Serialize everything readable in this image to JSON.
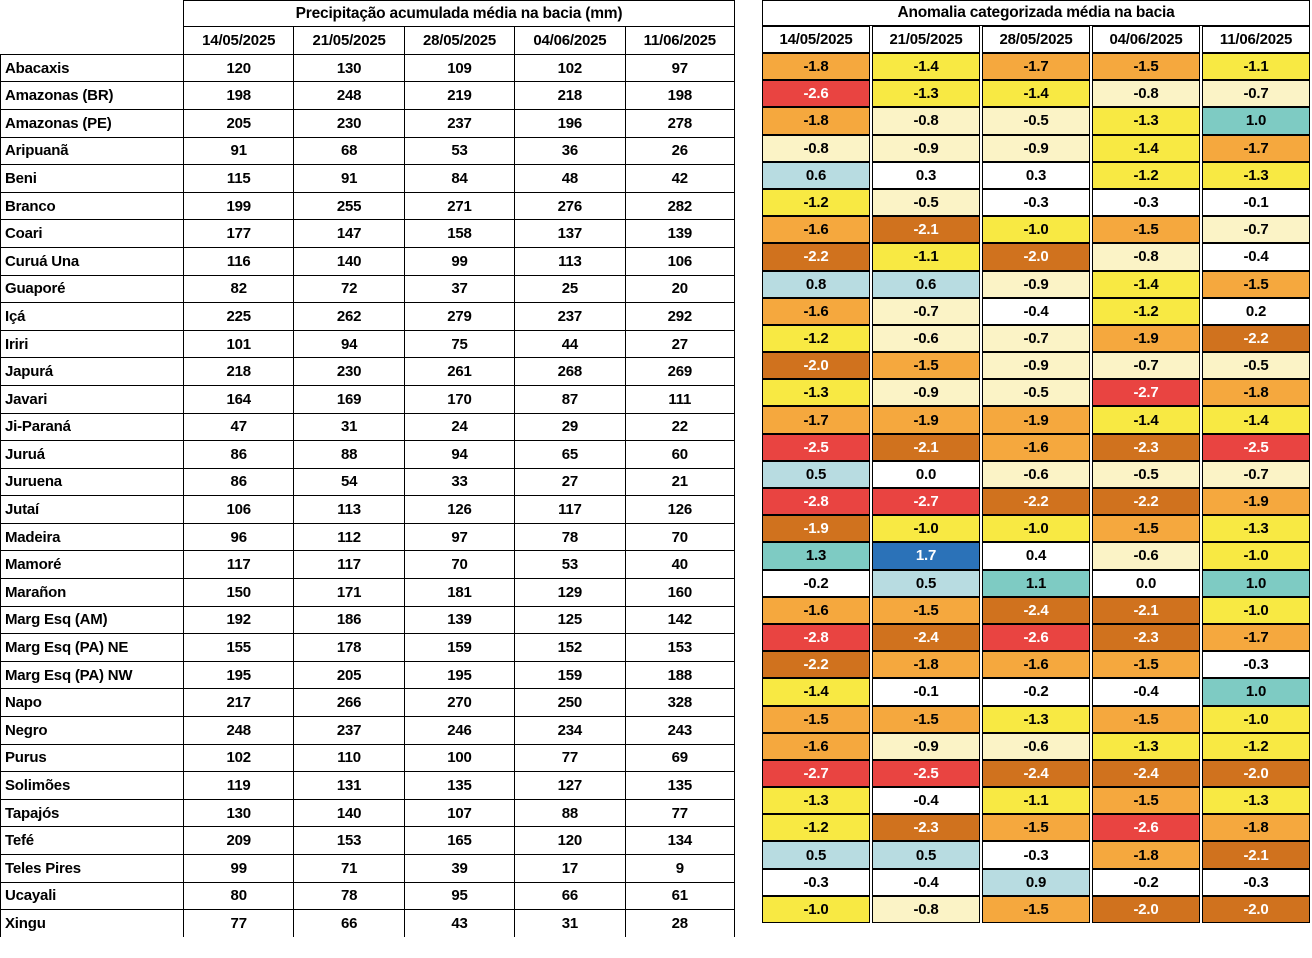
{
  "chart_data": [
    {
      "type": "table",
      "title": "Precipitação acumulada média na bacia (mm)",
      "columns": [
        "14/05/2025",
        "21/05/2025",
        "28/05/2025",
        "04/06/2025",
        "11/06/2025"
      ],
      "row_labels": [
        "Abacaxis",
        "Amazonas (BR)",
        "Amazonas (PE)",
        "Aripuanã",
        "Beni",
        "Branco",
        "Coari",
        "Curuá Una",
        "Guaporé",
        "Içá",
        "Iriri",
        "Japurá",
        "Javari",
        "Ji-Paraná",
        "Juruá",
        "Juruena",
        "Jutaí",
        "Madeira",
        "Mamoré",
        "Marañon",
        "Marg Esq (AM)",
        "Marg Esq (PA) NE",
        "Marg Esq (PA) NW",
        "Napo",
        "Negro",
        "Purus",
        "Solimões",
        "Tapajós",
        "Tefé",
        "Teles Pires",
        "Ucayali",
        "Xingu"
      ],
      "values": [
        [
          120,
          130,
          109,
          102,
          97
        ],
        [
          198,
          248,
          219,
          218,
          198
        ],
        [
          205,
          230,
          237,
          196,
          278
        ],
        [
          91,
          68,
          53,
          36,
          26
        ],
        [
          115,
          91,
          84,
          48,
          42
        ],
        [
          199,
          255,
          271,
          276,
          282
        ],
        [
          177,
          147,
          158,
          137,
          139
        ],
        [
          116,
          140,
          99,
          113,
          106
        ],
        [
          82,
          72,
          37,
          25,
          20
        ],
        [
          225,
          262,
          279,
          237,
          292
        ],
        [
          101,
          94,
          75,
          44,
          27
        ],
        [
          218,
          230,
          261,
          268,
          269
        ],
        [
          164,
          169,
          170,
          87,
          111
        ],
        [
          47,
          31,
          24,
          29,
          22
        ],
        [
          86,
          88,
          94,
          65,
          60
        ],
        [
          86,
          54,
          33,
          27,
          21
        ],
        [
          106,
          113,
          126,
          117,
          126
        ],
        [
          96,
          112,
          97,
          78,
          70
        ],
        [
          117,
          117,
          70,
          53,
          40
        ],
        [
          150,
          171,
          181,
          129,
          160
        ],
        [
          192,
          186,
          139,
          125,
          142
        ],
        [
          155,
          178,
          159,
          152,
          153
        ],
        [
          195,
          205,
          195,
          159,
          188
        ],
        [
          217,
          266,
          270,
          250,
          328
        ],
        [
          248,
          237,
          246,
          234,
          243
        ],
        [
          102,
          110,
          100,
          77,
          69
        ],
        [
          119,
          131,
          135,
          127,
          135
        ],
        [
          130,
          140,
          107,
          88,
          77
        ],
        [
          209,
          153,
          165,
          120,
          134
        ],
        [
          99,
          71,
          39,
          17,
          9
        ],
        [
          80,
          78,
          95,
          66,
          61
        ],
        [
          77,
          66,
          43,
          31,
          28
        ]
      ]
    },
    {
      "type": "heatmap",
      "title": "Anomalia categorizada média na bacia",
      "columns": [
        "14/05/2025",
        "21/05/2025",
        "28/05/2025",
        "04/06/2025",
        "11/06/2025"
      ],
      "row_labels": [
        "Abacaxis",
        "Amazonas (BR)",
        "Amazonas (PE)",
        "Aripuanã",
        "Beni",
        "Branco",
        "Coari",
        "Curuá Una",
        "Guaporé",
        "Içá",
        "Iriri",
        "Japurá",
        "Javari",
        "Ji-Paraná",
        "Juruá",
        "Juruena",
        "Jutaí",
        "Madeira",
        "Mamoré",
        "Marañon",
        "Marg Esq (AM)",
        "Marg Esq (PA) NE",
        "Marg Esq (PA) NW",
        "Napo",
        "Negro",
        "Purus",
        "Solimões",
        "Tapajós",
        "Tefé",
        "Teles Pires",
        "Ucayali",
        "Xingu"
      ],
      "values": [
        [
          "-1.8",
          "-1.4",
          "-1.7",
          "-1.5",
          "-1.1"
        ],
        [
          "-2.6",
          "-1.3",
          "-1.4",
          "-0.8",
          "-0.7"
        ],
        [
          "-1.8",
          "-0.8",
          "-0.5",
          "-1.3",
          "1.0"
        ],
        [
          "-0.8",
          "-0.9",
          "-0.9",
          "-1.4",
          "-1.7"
        ],
        [
          "0.6",
          "0.3",
          "0.3",
          "-1.2",
          "-1.3"
        ],
        [
          "-1.2",
          "-0.5",
          "-0.3",
          "-0.3",
          "-0.1"
        ],
        [
          "-1.6",
          "-2.1",
          "-1.0",
          "-1.5",
          "-0.7"
        ],
        [
          "-2.2",
          "-1.1",
          "-2.0",
          "-0.8",
          "-0.4"
        ],
        [
          "0.8",
          "0.6",
          "-0.9",
          "-1.4",
          "-1.5"
        ],
        [
          "-1.6",
          "-0.7",
          "-0.4",
          "-1.2",
          "0.2"
        ],
        [
          "-1.2",
          "-0.6",
          "-0.7",
          "-1.9",
          "-2.2"
        ],
        [
          "-2.0",
          "-1.5",
          "-0.9",
          "-0.7",
          "-0.5"
        ],
        [
          "-1.3",
          "-0.9",
          "-0.5",
          "-2.7",
          "-1.8"
        ],
        [
          "-1.7",
          "-1.9",
          "-1.9",
          "-1.4",
          "-1.4"
        ],
        [
          "-2.5",
          "-2.1",
          "-1.6",
          "-2.3",
          "-2.5"
        ],
        [
          "0.5",
          "0.0",
          "-0.6",
          "-0.5",
          "-0.7"
        ],
        [
          "-2.8",
          "-2.7",
          "-2.2",
          "-2.2",
          "-1.9"
        ],
        [
          "-1.9",
          "-1.0",
          "-1.0",
          "-1.5",
          "-1.3"
        ],
        [
          "1.3",
          "1.7",
          "0.4",
          "-0.6",
          "-1.0"
        ],
        [
          "-0.2",
          "0.5",
          "1.1",
          "0.0",
          "1.0"
        ],
        [
          "-1.6",
          "-1.5",
          "-2.4",
          "-2.1",
          "-1.0"
        ],
        [
          "-2.8",
          "-2.4",
          "-2.6",
          "-2.3",
          "-1.7"
        ],
        [
          "-2.2",
          "-1.8",
          "-1.6",
          "-1.5",
          "-0.3"
        ],
        [
          "-1.4",
          "-0.1",
          "-0.2",
          "-0.4",
          "1.0"
        ],
        [
          "-1.5",
          "-1.5",
          "-1.3",
          "-1.5",
          "-1.0"
        ],
        [
          "-1.6",
          "-0.9",
          "-0.6",
          "-1.3",
          "-1.2"
        ],
        [
          "-2.7",
          "-2.5",
          "-2.4",
          "-2.4",
          "-2.0"
        ],
        [
          "-1.3",
          "-0.4",
          "-1.1",
          "-1.5",
          "-1.3"
        ],
        [
          "-1.2",
          "-2.3",
          "-1.5",
          "-2.6",
          "-1.8"
        ],
        [
          "0.5",
          "0.5",
          "-0.3",
          "-1.8",
          "-2.1"
        ],
        [
          "-0.3",
          "-0.4",
          "0.9",
          "-0.2",
          "-0.3"
        ],
        [
          "-1.0",
          "-0.8",
          "-1.5",
          "-2.0",
          "-2.0"
        ]
      ],
      "cell_categories": [
        [
          "orange",
          "yellow",
          "orange",
          "orange",
          "yellow"
        ],
        [
          "red",
          "yellow",
          "yellow",
          "cream",
          "cream"
        ],
        [
          "orange",
          "cream",
          "cream",
          "yellow",
          "teal"
        ],
        [
          "cream",
          "cream",
          "cream",
          "yellow",
          "orange"
        ],
        [
          "light_blue",
          "white",
          "white",
          "yellow",
          "yellow"
        ],
        [
          "yellow",
          "cream",
          "white",
          "white",
          "white"
        ],
        [
          "orange",
          "dark_orange",
          "yellow",
          "orange",
          "cream"
        ],
        [
          "dark_orange",
          "yellow",
          "dark_orange",
          "cream",
          "white"
        ],
        [
          "light_blue",
          "light_blue",
          "cream",
          "yellow",
          "orange"
        ],
        [
          "orange",
          "cream",
          "white",
          "yellow",
          "white"
        ],
        [
          "yellow",
          "cream",
          "cream",
          "orange",
          "dark_orange"
        ],
        [
          "dark_orange",
          "orange",
          "cream",
          "cream",
          "cream"
        ],
        [
          "yellow",
          "cream",
          "cream",
          "red",
          "orange"
        ],
        [
          "orange",
          "orange",
          "orange",
          "yellow",
          "yellow"
        ],
        [
          "red",
          "dark_orange",
          "orange",
          "dark_orange",
          "red"
        ],
        [
          "light_blue",
          "white",
          "cream",
          "cream",
          "cream"
        ],
        [
          "red",
          "red",
          "dark_orange",
          "dark_orange",
          "orange"
        ],
        [
          "dark_orange",
          "yellow",
          "yellow",
          "orange",
          "yellow"
        ],
        [
          "teal",
          "blue",
          "white",
          "cream",
          "yellow"
        ],
        [
          "white",
          "light_blue",
          "teal",
          "white",
          "teal"
        ],
        [
          "orange",
          "orange",
          "dark_orange",
          "dark_orange",
          "yellow"
        ],
        [
          "red",
          "dark_orange",
          "red",
          "dark_orange",
          "orange"
        ],
        [
          "dark_orange",
          "orange",
          "orange",
          "orange",
          "white"
        ],
        [
          "yellow",
          "white",
          "white",
          "white",
          "teal"
        ],
        [
          "orange",
          "orange",
          "yellow",
          "orange",
          "yellow"
        ],
        [
          "orange",
          "cream",
          "cream",
          "yellow",
          "yellow"
        ],
        [
          "red",
          "red",
          "dark_orange",
          "dark_orange",
          "dark_orange"
        ],
        [
          "yellow",
          "white",
          "yellow",
          "orange",
          "yellow"
        ],
        [
          "yellow",
          "dark_orange",
          "orange",
          "red",
          "orange"
        ],
        [
          "light_blue",
          "light_blue",
          "white",
          "orange",
          "dark_orange"
        ],
        [
          "white",
          "white",
          "light_blue",
          "white",
          "white"
        ],
        [
          "yellow",
          "cream",
          "orange",
          "dark_orange",
          "dark_orange"
        ]
      ],
      "category_colors": {
        "red": "#E94441",
        "dark_orange": "#D0721E",
        "orange": "#F5A83E",
        "yellow": "#F8E943",
        "cream": "#FBF3C6",
        "white": "#FFFFFF",
        "light_blue": "#B8DCE1",
        "teal": "#7ECBC3",
        "blue": "#2B72B8"
      },
      "white_text_categories": [
        "red",
        "dark_orange",
        "blue"
      ]
    }
  ]
}
